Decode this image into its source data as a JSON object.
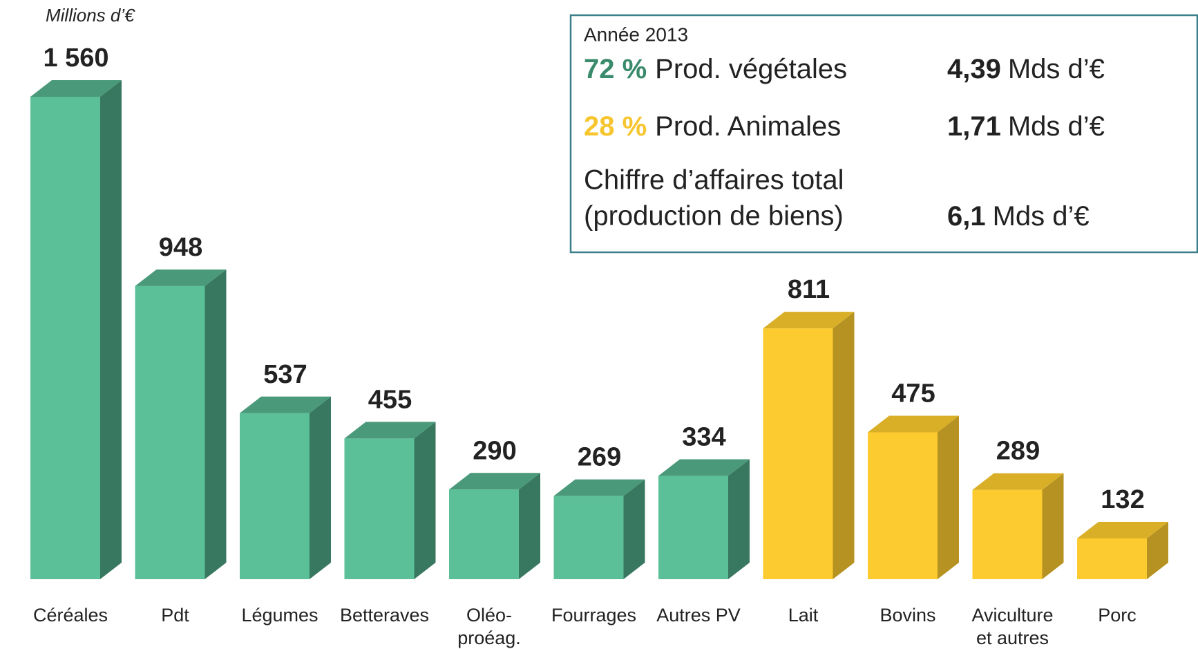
{
  "chart_data": {
    "type": "bar3d",
    "y_label": "Millions d’€",
    "categories": [
      "Céréales",
      "Pdt",
      "Légumes",
      "Betteraves",
      "Oléo-\nproéag.",
      "Fourrages",
      "Autres PV",
      "Lait",
      "Bovins",
      "Aviculture\net autres",
      "Porc"
    ],
    "values": [
      1560,
      948,
      537,
      455,
      290,
      269,
      334,
      811,
      475,
      289,
      132
    ],
    "value_labels": [
      "1 560",
      "948",
      "537",
      "455",
      "290",
      "269",
      "334",
      "811",
      "475",
      "289",
      "132"
    ],
    "colors": [
      "#5bbf98",
      "#5bbf98",
      "#5bbf98",
      "#5bbf98",
      "#5bbf98",
      "#5bbf98",
      "#5bbf98",
      "#fccb2f",
      "#fccb2f",
      "#fccb2f",
      "#fccb2f"
    ],
    "annotation": {
      "year": "Année 2013",
      "rows": [
        {
          "percent": "72 %",
          "label": "Prod. végétales",
          "amount": "4,39",
          "unit": "Mds d’€",
          "color": "#3a8a6c"
        },
        {
          "percent": "28 %",
          "label": "Prod. Animales",
          "amount": "1,71",
          "unit": "Mds d’€",
          "color": "#f7c52e"
        }
      ],
      "total_lines": [
        "Chiffre d’affaires total",
        "(production de biens)"
      ],
      "total_amount": "6,1",
      "total_unit": "Mds d’€"
    }
  }
}
